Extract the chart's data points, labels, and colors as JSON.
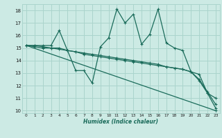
{
  "xlabel": "Humidex (Indice chaleur)",
  "xlim": [
    -0.5,
    23.5
  ],
  "ylim": [
    9.8,
    18.5
  ],
  "xticks": [
    0,
    1,
    2,
    3,
    4,
    5,
    6,
    7,
    8,
    9,
    10,
    11,
    12,
    13,
    14,
    15,
    16,
    17,
    18,
    19,
    20,
    21,
    22,
    23
  ],
  "yticks": [
    10,
    11,
    12,
    13,
    14,
    15,
    16,
    17,
    18
  ],
  "bg_color": "#cceae4",
  "grid_color": "#aad4cc",
  "line_color": "#1a6b5a",
  "line1_x": [
    0,
    1,
    2,
    3,
    4,
    5,
    6,
    7,
    8,
    9,
    10,
    11,
    12,
    13,
    14,
    15,
    16,
    17,
    18,
    19,
    20,
    21,
    22,
    23
  ],
  "line1_y": [
    15.2,
    15.2,
    15.2,
    15.2,
    16.4,
    14.8,
    13.2,
    13.2,
    12.2,
    15.1,
    15.8,
    18.1,
    17.0,
    17.7,
    15.3,
    16.1,
    18.1,
    15.4,
    15.0,
    14.8,
    13.1,
    12.4,
    11.4,
    11.0
  ],
  "line2_x": [
    0,
    23
  ],
  "line2_y": [
    15.2,
    10.0
  ],
  "line3_x": [
    0,
    1,
    2,
    3,
    4,
    5,
    6,
    7,
    8,
    9,
    10,
    11,
    12,
    13,
    14,
    15,
    16,
    17,
    18,
    19,
    20,
    21,
    22,
    23
  ],
  "line3_y": [
    15.2,
    15.2,
    15.1,
    15.0,
    15.0,
    14.8,
    14.7,
    14.5,
    14.4,
    14.3,
    14.2,
    14.1,
    14.0,
    13.9,
    13.8,
    13.7,
    13.6,
    13.5,
    13.4,
    13.3,
    13.1,
    12.5,
    11.5,
    10.5
  ],
  "line4_x": [
    0,
    1,
    2,
    3,
    4,
    5,
    6,
    7,
    8,
    9,
    10,
    11,
    12,
    13,
    14,
    15,
    16,
    17,
    18,
    19,
    20,
    21,
    22,
    23
  ],
  "line4_y": [
    15.2,
    15.1,
    15.0,
    15.0,
    14.9,
    14.8,
    14.7,
    14.6,
    14.5,
    14.4,
    14.3,
    14.2,
    14.1,
    14.0,
    13.9,
    13.8,
    13.7,
    13.5,
    13.4,
    13.3,
    13.1,
    12.9,
    11.4,
    10.2
  ]
}
